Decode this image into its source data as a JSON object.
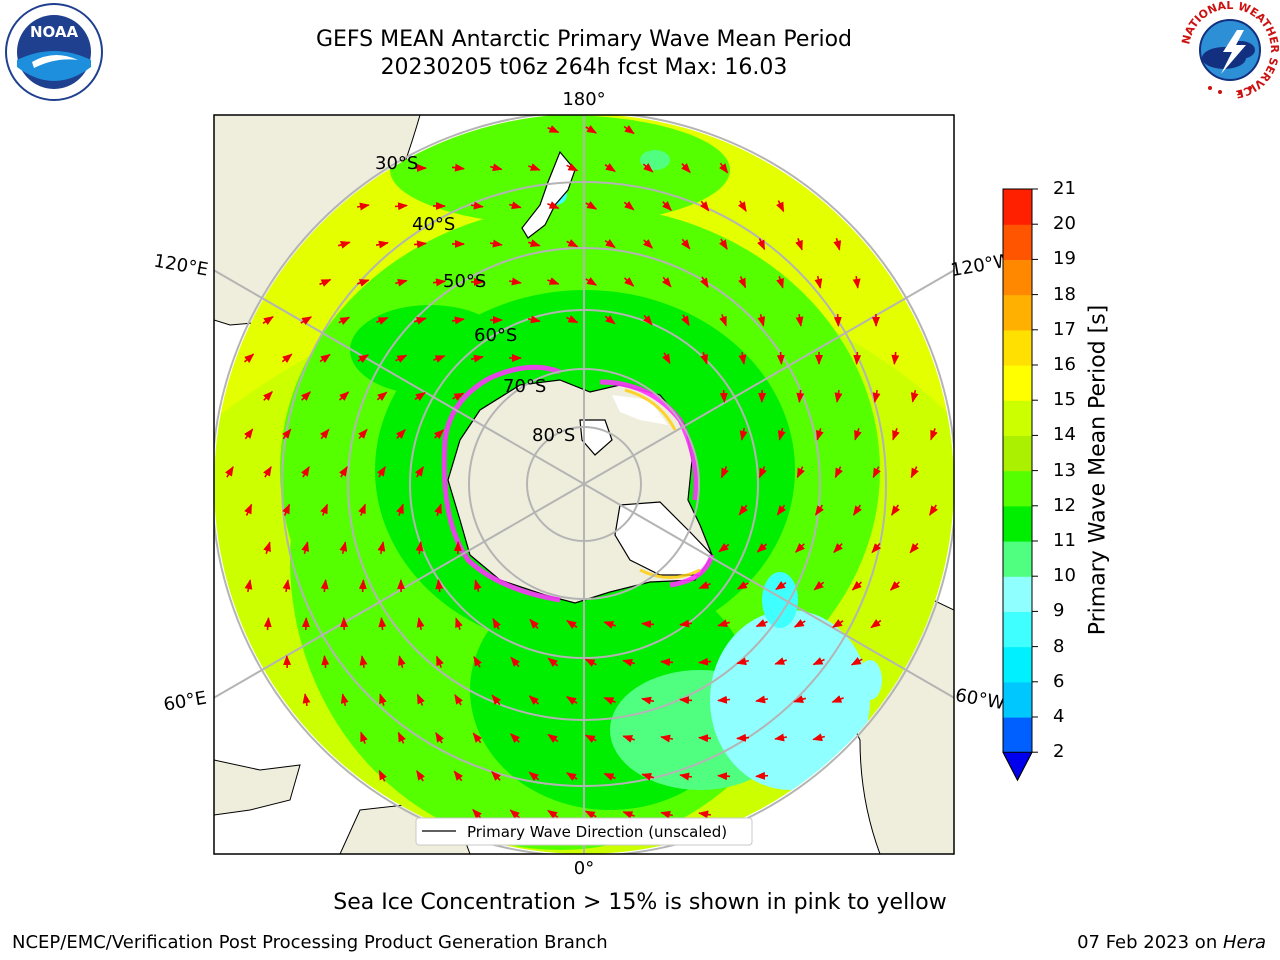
{
  "title": {
    "line1": "GEFS MEAN Antarctic Primary Wave Mean Period",
    "line2": "20230205 t06z 264h fcst   Max: 16.03"
  },
  "logos": {
    "left": {
      "name": "noaa-logo",
      "text": "NOAA"
    },
    "right": {
      "name": "nws-logo",
      "text": "NATIONAL WEATHER SERVICE"
    }
  },
  "map": {
    "longitude_labels": {
      "top": "180°",
      "bottom": "0°",
      "left_upper": "120°E",
      "right_upper": "120°W",
      "left_lower": "60°E",
      "right_lower": "60°W"
    },
    "latitude_labels": [
      "30°S",
      "40°S",
      "50°S",
      "60°S",
      "70°S",
      "80°S"
    ],
    "legend_label": "Primary Wave Direction (unscaled)",
    "colors": {
      "land": "#efeedd",
      "arrows": "#ee0000",
      "sea_ice_edge": "#ff33ff",
      "grid": "#b4b4b4"
    }
  },
  "colorbar": {
    "label": "Primary Wave Mean Period [s]",
    "ticks": [
      "2",
      "4",
      "6",
      "8",
      "9",
      "10",
      "11",
      "12",
      "13",
      "14",
      "15",
      "16",
      "17",
      "18",
      "19",
      "20",
      "21"
    ],
    "colors": [
      "#0060ff",
      "#00c8ff",
      "#00f0ff",
      "#40ffff",
      "#90ffff",
      "#50ff80",
      "#00ee00",
      "#55ff00",
      "#aaf000",
      "#ccff00",
      "#ffff00",
      "#ffe000",
      "#ffb000",
      "#ff8800",
      "#ff5500",
      "#ff2000"
    ],
    "under_color": "#0000ee",
    "over_color": "#ff0000"
  },
  "footer": {
    "note": "Sea Ice Concentration > 15% is shown in pink to yellow",
    "credit": "NCEP/EMC/Verification Post Processing Product Generation Branch",
    "date": "07 Feb 2023 on ",
    "host": "Hera"
  }
}
